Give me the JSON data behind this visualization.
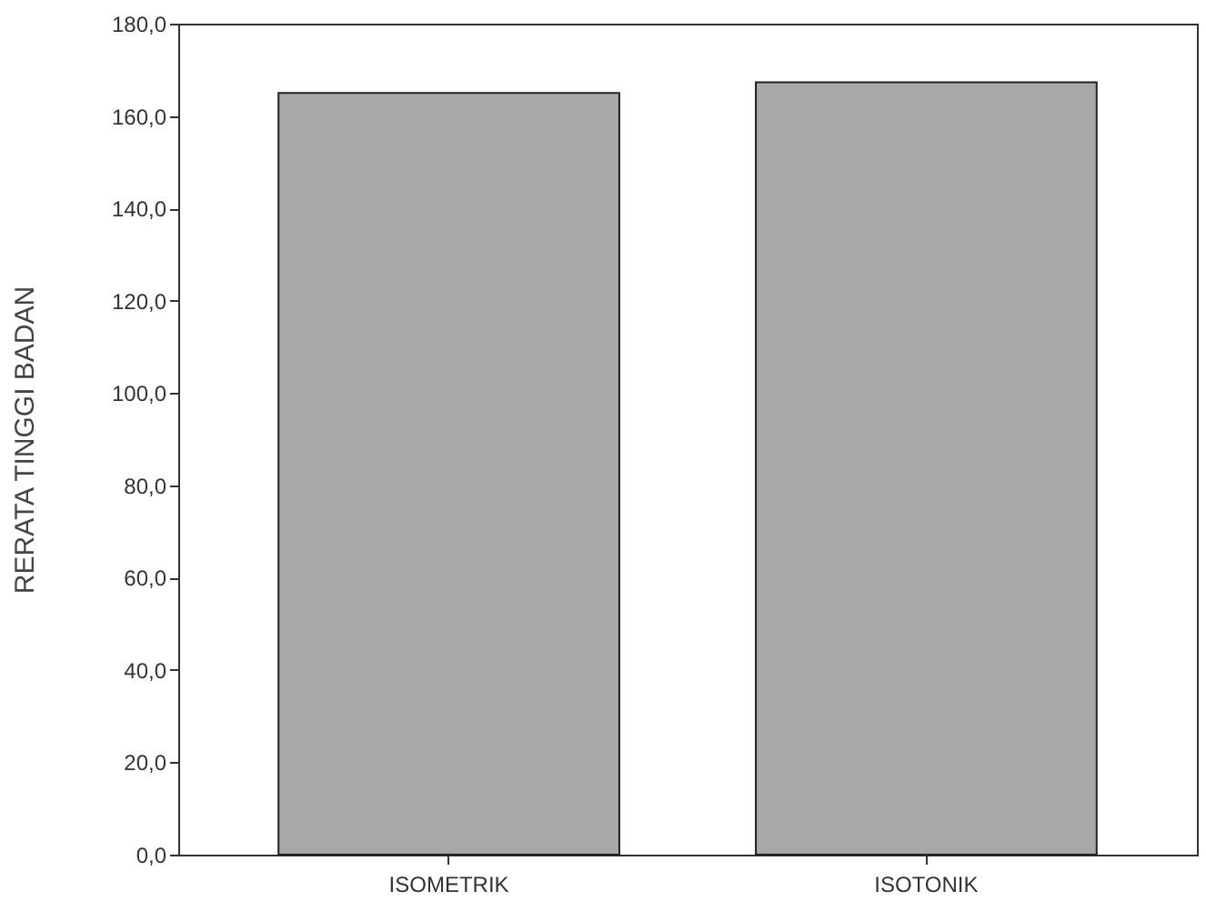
{
  "chart_data": {
    "type": "bar",
    "ylabel": "RERATA TINGGI BADAN",
    "categories": [
      "ISOMETRIK",
      "ISOTONIK"
    ],
    "values": [
      165.0,
      167.3
    ],
    "color": "#a8a8a8",
    "ylim": [
      0,
      180
    ],
    "yticks": [
      {
        "value": 0,
        "label": "0,0"
      },
      {
        "value": 20,
        "label": "20,0"
      },
      {
        "value": 40,
        "label": "40,0"
      },
      {
        "value": 60,
        "label": "60,0"
      },
      {
        "value": 80,
        "label": "80,0"
      },
      {
        "value": 100,
        "label": "100,0"
      },
      {
        "value": 120,
        "label": "120,0"
      },
      {
        "value": 140,
        "label": "140,0"
      },
      {
        "value": 160,
        "label": "160,0"
      },
      {
        "value": 180,
        "label": "180,0"
      }
    ],
    "grid": false
  }
}
